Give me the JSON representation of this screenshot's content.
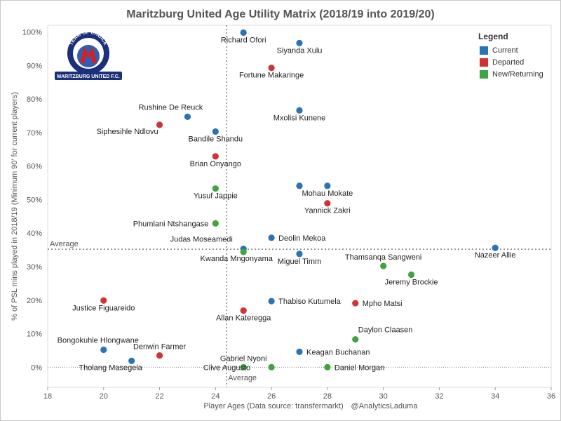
{
  "chart_data": {
    "type": "scatter",
    "title": "Maritzburg United Age Utility Matrix (2018/19 into 2019/20)",
    "xlabel": "Player Ages (Data source: transfermarkt)",
    "credit": "@AnalyticsLaduma",
    "ylabel": "% of PSL mins played in 2018/19 (Minimum 90' for current players)",
    "xlim": [
      18,
      36
    ],
    "ylim": [
      -6,
      102
    ],
    "xticks": [
      "18",
      "20",
      "22",
      "24",
      "26",
      "28",
      "30",
      "32",
      "34",
      "36"
    ],
    "yticks": [
      "0%",
      "10%",
      "20%",
      "30%",
      "40%",
      "50%",
      "60%",
      "70%",
      "80%",
      "90%",
      "100%"
    ],
    "x_average": 24.4,
    "y_average": 35.2,
    "x_average_label": "Average",
    "y_average_label": "Average",
    "legend": {
      "title": "Legend",
      "position": "top-right",
      "entries": [
        {
          "label": "Current",
          "color": "#2a73b6"
        },
        {
          "label": "Departed",
          "color": "#d43232"
        },
        {
          "label": "New/Returning",
          "color": "#3ea43e"
        }
      ]
    },
    "series": [
      {
        "name": "Current",
        "color": "#2a73b6",
        "points": [
          {
            "label": "Richard Ofori",
            "x": 25,
            "y": 99.8,
            "pos": "below"
          },
          {
            "label": "Siyanda Xulu",
            "x": 27,
            "y": 96.7,
            "pos": "below"
          },
          {
            "label": "Mxolisi Kunene",
            "x": 27,
            "y": 76.6,
            "pos": "below"
          },
          {
            "label": "Rushine De Reuck",
            "x": 23,
            "y": 74.7,
            "pos": "above-left"
          },
          {
            "label": "Bandile Shandu",
            "x": 24,
            "y": 70.3,
            "pos": "below"
          },
          {
            "label": "",
            "x": 27,
            "y": 54.1
          },
          {
            "label": "Mohau Mokate",
            "x": 28,
            "y": 54.1,
            "pos": "below"
          },
          {
            "label": "Deolin Mekoa",
            "x": 26,
            "y": 38.6,
            "pos": "right"
          },
          {
            "label": "Judas Moseamedi",
            "x": 25,
            "y": 35.3,
            "pos": "above-left"
          },
          {
            "label": "Miguel Timm",
            "x": 27,
            "y": 33.8,
            "pos": "below"
          },
          {
            "label": "Nazeer Allie",
            "x": 34,
            "y": 35.6,
            "pos": "below"
          },
          {
            "label": "Thabiso Kutumela",
            "x": 26,
            "y": 19.7,
            "pos": "right"
          },
          {
            "label": "Keagan Buchanan",
            "x": 27,
            "y": 4.6,
            "pos": "right"
          },
          {
            "label": "Bongokuhle Hlongwane",
            "x": 20,
            "y": 5.2,
            "pos": "above-left"
          },
          {
            "label": "Tholang Masegela",
            "x": 21,
            "y": 1.9,
            "pos": "below-left"
          }
        ]
      },
      {
        "name": "Departed",
        "color": "#d43232",
        "points": [
          {
            "label": "Fortune Makaringe",
            "x": 26,
            "y": 89.3,
            "pos": "below"
          },
          {
            "label": "Siphesihle Ndlovu",
            "x": 22,
            "y": 72.3,
            "pos": "below-left"
          },
          {
            "label": "Brian Onyango",
            "x": 24,
            "y": 62.9,
            "pos": "below"
          },
          {
            "label": "Yannick Zakri",
            "x": 28,
            "y": 48.9,
            "pos": "below"
          },
          {
            "label": "Justice Figuareido",
            "x": 20,
            "y": 19.9,
            "pos": "below"
          },
          {
            "label": "Allan Kateregga",
            "x": 25,
            "y": 16.9,
            "pos": "below"
          },
          {
            "label": "Mpho Matsi",
            "x": 29,
            "y": 19.1,
            "pos": "right"
          },
          {
            "label": "Denwin Farmer",
            "x": 22,
            "y": 3.5,
            "pos": "above"
          }
        ]
      },
      {
        "name": "New/Returning",
        "color": "#3ea43e",
        "points": [
          {
            "label": "Yusuf Jappie",
            "x": 24,
            "y": 53.3,
            "pos": "below"
          },
          {
            "label": "Phumlani Ntshangase",
            "x": 24,
            "y": 42.9,
            "pos": "left"
          },
          {
            "label": "Kwanda Mngonyama",
            "x": 25,
            "y": 34.4,
            "pos": "below-left"
          },
          {
            "label": "Thamsanqa Sangweni",
            "x": 30,
            "y": 30.2,
            "pos": "above"
          },
          {
            "label": "Jeremy Brockie",
            "x": 31,
            "y": 27.6,
            "pos": "below"
          },
          {
            "label": "Daylon Claasen",
            "x": 29,
            "y": 8.3,
            "pos": "above-right"
          },
          {
            "label": "Gabriel Nyoni",
            "x": 25,
            "y": 0,
            "pos": "above"
          },
          {
            "label": "Clive Augusto",
            "x": 26,
            "y": 0,
            "pos": "left-far"
          },
          {
            "label": "Daniel Morgan",
            "x": 28,
            "y": 0,
            "pos": "right"
          }
        ]
      }
    ]
  },
  "logo": {
    "top_text": "TEAM OF CHOICE",
    "bottom_text": "MARITZBURG UNITED F.C.",
    "colors": {
      "navy": "#1b2f7a",
      "red": "#d42020",
      "blue": "#2f5fb3"
    }
  }
}
